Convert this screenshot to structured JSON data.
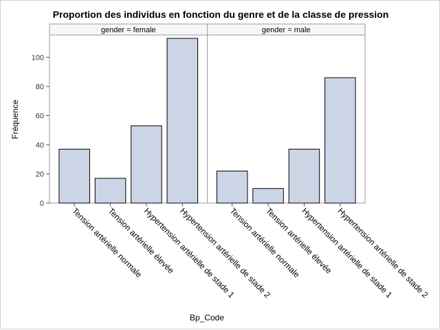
{
  "chart_data": {
    "type": "bar",
    "title": "Proportion des individus en fonction du genre et de la classe de pression",
    "xlabel": "Bp_Code",
    "ylabel": "Fréquence",
    "ylim": [
      0,
      120
    ],
    "yticks": [
      0,
      20,
      40,
      60,
      80,
      100
    ],
    "grid": false,
    "bar_color": "#cbd5e5",
    "bar_edge_color": "#000000",
    "categories": [
      "Tension artérielle normale",
      "Tension artérielle élevée",
      "Hypertension artérielle de stade 1",
      "Hypertension artérielle de stade 2"
    ],
    "panels": [
      {
        "label": "gender = female",
        "values": [
          37,
          17,
          53,
          113
        ]
      },
      {
        "label": "gender = male",
        "values": [
          22,
          10,
          37,
          86
        ]
      }
    ]
  }
}
